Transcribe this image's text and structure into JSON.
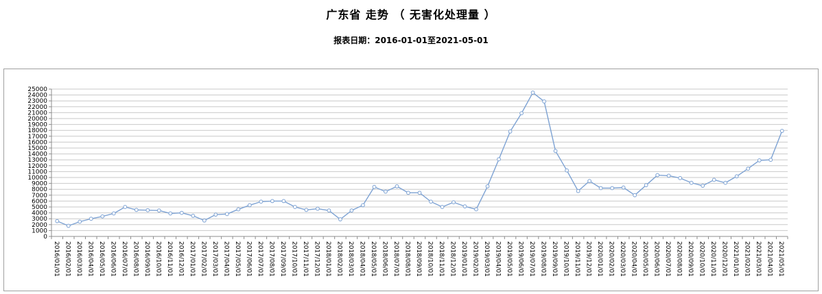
{
  "header": {
    "title": "广东省 走势 （ 无害化处理量 ）",
    "subtitle": "报表日期：2016-01-01至2021-05-01"
  },
  "chart_data": {
    "type": "line",
    "title": "广东省 走势 （ 无害化处理量 ）",
    "series_name": "无害化处理量",
    "x": [
      "2016/01/01",
      "2016/02/01",
      "2016/03/01",
      "2016/04/01",
      "2016/05/01",
      "2016/06/01",
      "2016/07/01",
      "2016/08/01",
      "2016/09/01",
      "2016/10/01",
      "2016/11/01",
      "2016/12/01",
      "2017/01/01",
      "2017/02/01",
      "2017/03/01",
      "2017/04/01",
      "2017/05/01",
      "2017/06/01",
      "2017/07/01",
      "2017/08/01",
      "2017/09/01",
      "2017/10/01",
      "2017/11/01",
      "2017/12/01",
      "2018/01/01",
      "2018/02/01",
      "2018/03/01",
      "2018/04/01",
      "2018/05/01",
      "2018/06/01",
      "2018/07/01",
      "2018/08/01",
      "2018/09/01",
      "2018/10/01",
      "2018/11/01",
      "2018/12/01",
      "2019/01/01",
      "2019/02/01",
      "2019/03/01",
      "2019/04/01",
      "2019/05/01",
      "2019/06/01",
      "2019/07/01",
      "2019/08/01",
      "2019/09/01",
      "2019/10/01",
      "2019/11/01",
      "2019/12/01",
      "2020/01/01",
      "2020/02/01",
      "2020/03/01",
      "2020/04/01",
      "2020/05/01",
      "2020/06/01",
      "2020/07/01",
      "2020/08/01",
      "2020/09/01",
      "2020/10/01",
      "2020/11/01",
      "2020/12/01",
      "2021/01/01",
      "2021/02/01",
      "2021/03/01",
      "2021/04/01",
      "2021/05/01"
    ],
    "values": [
      2600,
      1800,
      2500,
      3000,
      3400,
      3900,
      5000,
      4500,
      4450,
      4400,
      3900,
      4000,
      3500,
      2700,
      3700,
      3800,
      4600,
      5300,
      5900,
      6000,
      6000,
      5000,
      4500,
      4700,
      4400,
      2900,
      4400,
      5300,
      8400,
      7600,
      8500,
      7400,
      7400,
      5900,
      5000,
      5800,
      5100,
      4600,
      8500,
      13100,
      17800,
      20900,
      24400,
      22900,
      14500,
      11200,
      7700,
      9400,
      8200,
      8200,
      8300,
      7000,
      8700,
      10400,
      10300,
      9900,
      9100,
      8600,
      9600,
      9100,
      10200,
      11500,
      12900,
      13000,
      17900
    ],
    "ylim": [
      0,
      25000
    ],
    "ytick_interval": 1000,
    "yticks": [
      0,
      1000,
      2000,
      3000,
      4000,
      5000,
      6000,
      7000,
      8000,
      9000,
      10000,
      11000,
      12000,
      13000,
      14000,
      15000,
      16000,
      17000,
      18000,
      19000,
      20000,
      21000,
      22000,
      23000,
      24000,
      25000
    ],
    "xlabel": "",
    "ylabel": "",
    "legend": "none",
    "grid": "horizontal",
    "line_color": "#7da2d3",
    "marker": "open-circle",
    "marker_fill": "#ffffff",
    "gridline_color": "#c9c9c9",
    "axis_color": "#8c8c8c",
    "text_color": "#000000"
  }
}
